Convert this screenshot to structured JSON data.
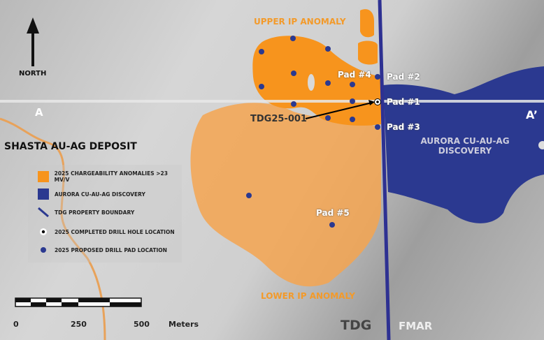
{
  "title": "SHASTA AU-AG DEPOSIT",
  "north_label": "NORTH",
  "section": {
    "start": "A",
    "end": "A’"
  },
  "anomalies": {
    "upper": "UPPER IP ANOMALY",
    "lower": "LOWER IP ANOMALY"
  },
  "discovery_label_line1": "AURORA CU-AU-AG",
  "discovery_label_line2": "DISCOVERY",
  "pads": {
    "p1": "Pad #1",
    "p2": "Pad #2",
    "p3": "Pad #3",
    "p4": "Pad #4",
    "p5": "Pad #5"
  },
  "drill_hole": "TDG25-001",
  "property_labels": {
    "west": "TDG",
    "east": "FMAR"
  },
  "legend": [
    {
      "label": "2025 CHARGEABILITY ANOMALIES >23 MV/V",
      "icon": "orange-square",
      "color": "#f7941d"
    },
    {
      "label": "AURORA CU-AU-AG DISCOVERY",
      "icon": "blue-square",
      "color": "#2b3990"
    },
    {
      "label": "TDG PROPERTY BOUNDARY",
      "icon": "blue-line",
      "color": "#2b3990"
    },
    {
      "label": "2025 COMPLETED DRILL HOLE LOCATION",
      "icon": "white-ring-black-dot"
    },
    {
      "label": "2025 PROPOSED DRILL PAD LOCATION",
      "icon": "blue-dot",
      "color": "#2b3990"
    }
  ],
  "scale": {
    "ticks": [
      "0",
      "250",
      "500"
    ],
    "unit": "Meters"
  },
  "colors": {
    "anomaly": "#f7941d",
    "discovery": "#2b3990",
    "boundary": "#2e3192",
    "road": "#e8a25a"
  }
}
